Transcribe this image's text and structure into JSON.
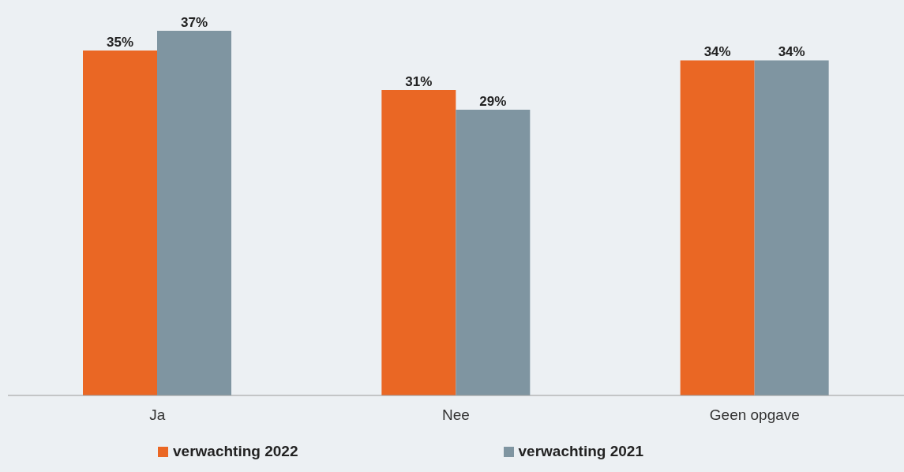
{
  "chart_data": {
    "type": "bar",
    "categories": [
      "Ja",
      "Nee",
      "Geen opgave"
    ],
    "series": [
      {
        "name": "verwachting 2022",
        "color": "#ea6724",
        "values": [
          35,
          31,
          34
        ],
        "value_labels": [
          "35%",
          "31%",
          "34%"
        ]
      },
      {
        "name": "verwachting 2021",
        "color": "#7f95a1",
        "values": [
          37,
          29,
          34
        ],
        "value_labels": [
          "37%",
          "29%",
          "34%"
        ]
      }
    ],
    "legend": "bottom",
    "grid": false
  }
}
